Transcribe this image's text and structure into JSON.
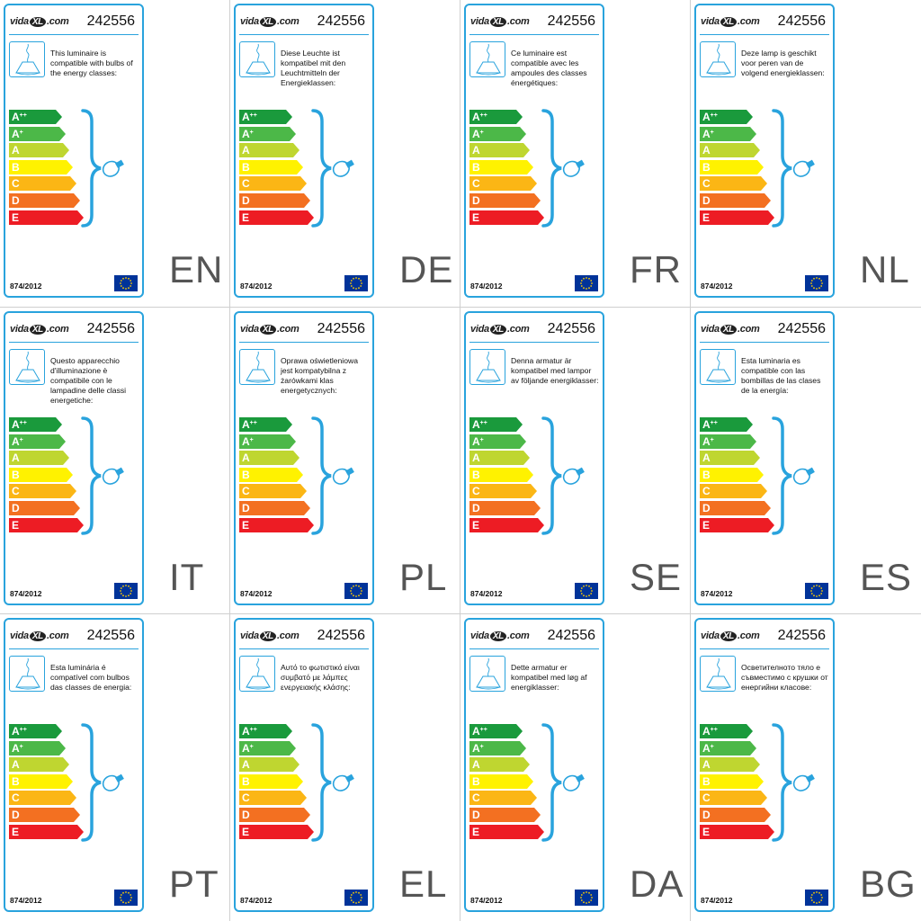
{
  "labels": [
    {
      "lang": "EN",
      "text": "This luminaire is compatible with bulbs of the energy classes:"
    },
    {
      "lang": "DE",
      "text": "Diese Leuchte ist kompatibel mit den Leuchtmitteln der Energieklassen:"
    },
    {
      "lang": "FR",
      "text": "Ce luminaire est compatible avec les ampoules des classes énergétiques:"
    },
    {
      "lang": "NL",
      "text": "Deze lamp is geschikt voor peren van de volgend energieklassen:"
    },
    {
      "lang": "IT",
      "text": "Questo apparecchio d'illuminazione è compatibile con le lampadine delle classi energetiche:"
    },
    {
      "lang": "PL",
      "text": "Oprawa oświetleniowa jest kompatybilna z żarówkami klas energetycznych:"
    },
    {
      "lang": "SE",
      "text": "Denna armatur är kompatibel med lampor av följande energiklasser:"
    },
    {
      "lang": "ES",
      "text": "Esta luminaria es compatible con las bombillas de las clases de la energía:"
    },
    {
      "lang": "PT",
      "text": "Esta luminária é compatível com bulbos das classes de energia:"
    },
    {
      "lang": "EL",
      "text": "Αυτό το φωτιστικό είναι συμβατό με λάμπες ενεργειακής κλάσης:"
    },
    {
      "lang": "DA",
      "text": "Dette armatur er kompatibel med løg af energiklasser:"
    },
    {
      "lang": "BG",
      "text": "Осветителното тяло е съвместимо с крушки от енергийни класове:"
    }
  ],
  "product_number": "242556",
  "regulation": "874/2012",
  "logo": {
    "prefix": "vida",
    "mark": "XL",
    "suffix": ".com"
  },
  "energy_classes": [
    {
      "letter": "A",
      "sup": "++",
      "color": "#1a9a3c"
    },
    {
      "letter": "A",
      "sup": "+",
      "color": "#4cb848"
    },
    {
      "letter": "A",
      "sup": "",
      "color": "#bfd630"
    },
    {
      "letter": "B",
      "sup": "",
      "color": "#fff200"
    },
    {
      "letter": "C",
      "sup": "",
      "color": "#fbb615"
    },
    {
      "letter": "D",
      "sup": "",
      "color": "#f37021"
    },
    {
      "letter": "E",
      "sup": "",
      "color": "#ed1c24"
    }
  ],
  "icons": {
    "lamp": "pendant-lamp-icon",
    "bulb": "light-bulb-icon",
    "brace": "curly-brace-icon",
    "flag": "eu-flag-icon"
  },
  "colors": {
    "accent": "#29a3dd",
    "flag_blue": "#003399",
    "flag_star": "#ffcc00",
    "lang_code": "#555555"
  }
}
